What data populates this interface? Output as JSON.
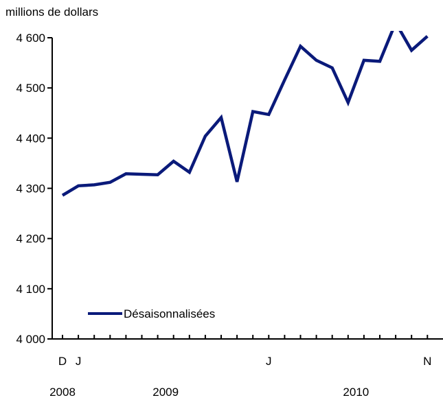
{
  "chart_data": {
    "type": "line",
    "ylabel": "millions de dollars",
    "ylim": [
      4000,
      4600
    ],
    "yticks": [
      4000,
      4100,
      4200,
      4300,
      4400,
      4500,
      4600
    ],
    "ytick_labels": [
      "4 000",
      "4 100",
      "4 200",
      "4 300",
      "4 400",
      "4 500",
      "4 600"
    ],
    "x_month_labels": [
      {
        "index": 0,
        "label": "D"
      },
      {
        "index": 1,
        "label": "J"
      },
      {
        "index": 13,
        "label": "J"
      },
      {
        "index": 23,
        "label": "N"
      }
    ],
    "x_year_labels": [
      {
        "index": 0,
        "label": "2008"
      },
      {
        "index": 6.5,
        "label": "2009"
      },
      {
        "index": 18.5,
        "label": "2010"
      }
    ],
    "x": [
      "2008-12",
      "2009-01",
      "2009-02",
      "2009-03",
      "2009-04",
      "2009-05",
      "2009-06",
      "2009-07",
      "2009-08",
      "2009-09",
      "2009-10",
      "2009-11",
      "2009-12",
      "2010-01",
      "2010-02",
      "2010-03",
      "2010-04",
      "2010-05",
      "2010-06",
      "2010-07",
      "2010-08",
      "2010-09",
      "2010-10",
      "2010-11"
    ],
    "series": [
      {
        "name": "Désaisonnalisées",
        "color": "#0a1a7a",
        "values": [
          4286,
          4305,
          4307,
          4312,
          4329,
          4328,
          4327,
          4354,
          4332,
          4404,
          4441,
          4313,
          4453,
          4447,
          4516,
          4583,
          4555,
          4540,
          4471,
          4555,
          4553,
          4630,
          4575,
          4603
        ]
      }
    ],
    "legend": {
      "position": "bottom-left",
      "label": "Désaisonnalisées"
    },
    "grid": false
  }
}
